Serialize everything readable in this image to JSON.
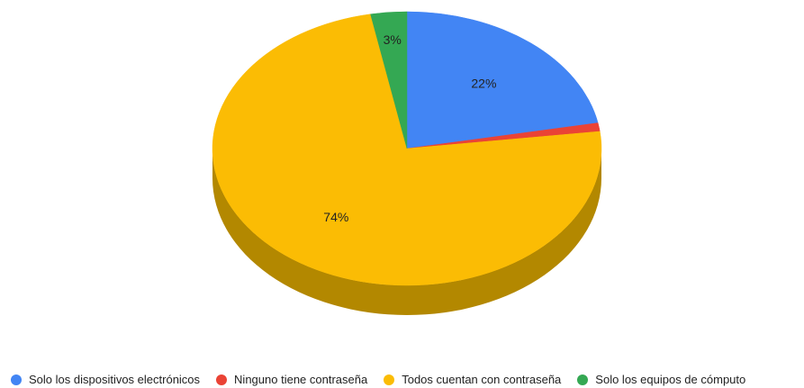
{
  "chart_data": {
    "type": "pie",
    "style": "3d",
    "categories": [
      "Solo los dispositivos electrónicos",
      "Ninguno tiene contraseña",
      "Todos cuentan con contraseña",
      "Solo los equipos de cómputo"
    ],
    "values": [
      22,
      1,
      74,
      3
    ],
    "data_labels": [
      "22%",
      "",
      "74%",
      "3%"
    ],
    "colors": [
      "#4285f4",
      "#ea4335",
      "#fbbc04",
      "#34a853"
    ],
    "side_colors": [
      "#2f62b8",
      "#b8332a",
      "#b38800",
      "#25783b"
    ],
    "legend_position": "bottom"
  }
}
